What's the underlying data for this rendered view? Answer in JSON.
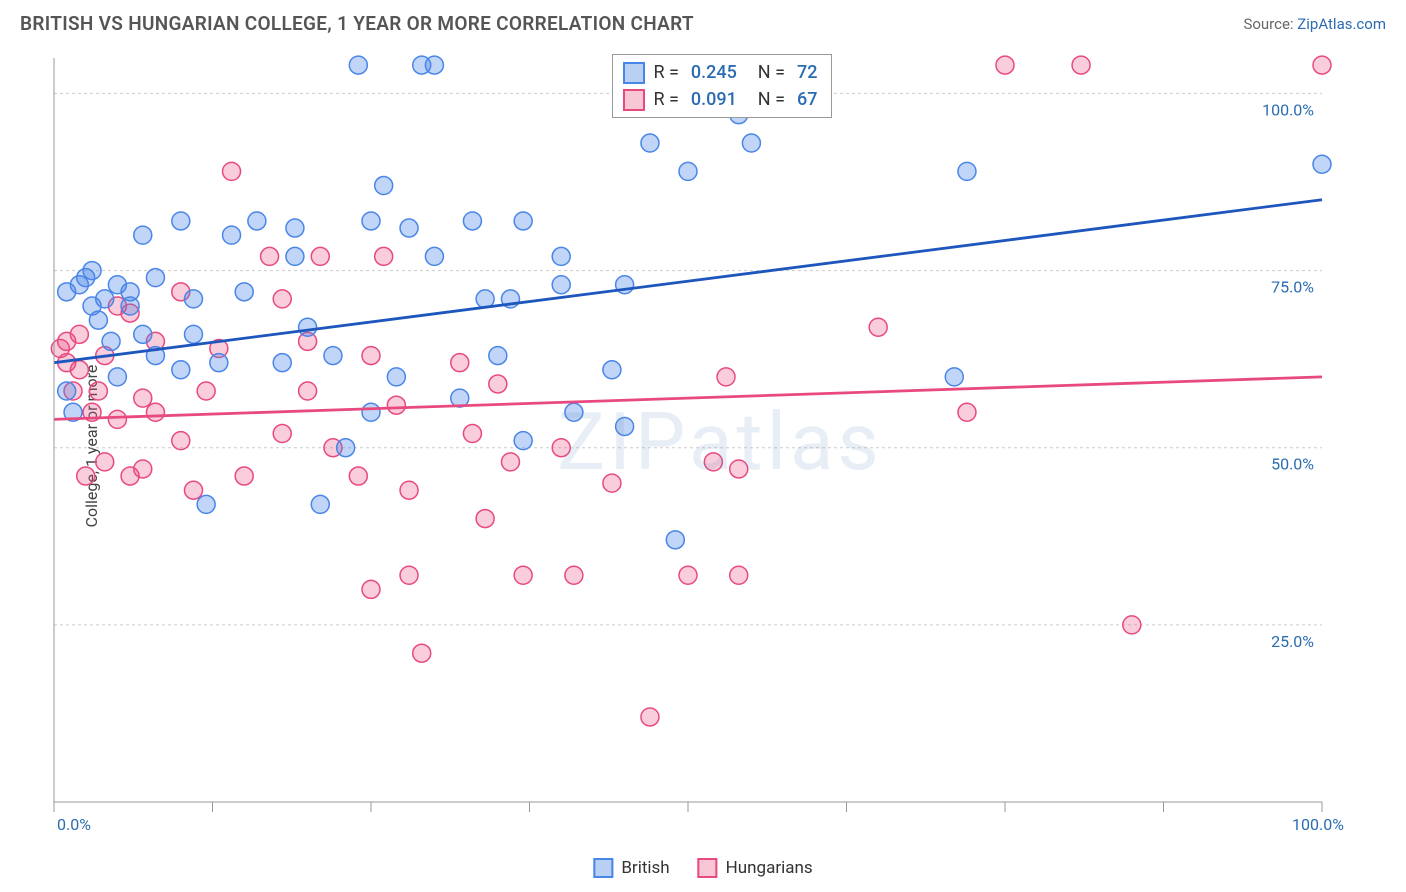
{
  "title": "BRITISH VS HUNGARIAN COLLEGE, 1 YEAR OR MORE CORRELATION CHART",
  "source_prefix": "Source: ",
  "source_name": "ZipAtlas.com",
  "watermark": "ZIPatlas",
  "ylabel": "College, 1 year or more",
  "chart": {
    "type": "scatter",
    "xlim": [
      0,
      100
    ],
    "ylim": [
      0,
      105
    ],
    "y_gridlines": [
      25,
      50,
      75,
      100
    ],
    "y_tick_labels": [
      "25.0%",
      "50.0%",
      "75.0%",
      "100.0%"
    ],
    "x_ticks": [
      0,
      12.5,
      25,
      37.5,
      50,
      62.5,
      75,
      87.5,
      100
    ],
    "x_axis_labels": {
      "left": "0.0%",
      "right": "100.0%"
    },
    "grid_color": "#cccccc",
    "axis_color": "#999999",
    "background": "#ffffff",
    "series": [
      {
        "name": "British",
        "fill": "rgba(74,134,232,0.35)",
        "stroke": "#4a86e8",
        "swatch_fill": "#b9d0f5",
        "swatch_stroke": "#4a86e8",
        "marker_r": 9,
        "R": "0.245",
        "N": "72",
        "trend": {
          "y0": 62,
          "y1": 85,
          "color": "#1d56bd",
          "width": 2.8
        },
        "points": [
          [
            1,
            58
          ],
          [
            1.5,
            55
          ],
          [
            1,
            72
          ],
          [
            2,
            73
          ],
          [
            2.5,
            74
          ],
          [
            3,
            70
          ],
          [
            3,
            75
          ],
          [
            3.5,
            68
          ],
          [
            4,
            71
          ],
          [
            4.5,
            65
          ],
          [
            5,
            73
          ],
          [
            5,
            60
          ],
          [
            6,
            70
          ],
          [
            6,
            72
          ],
          [
            7,
            66
          ],
          [
            7,
            80
          ],
          [
            8,
            63
          ],
          [
            8,
            74
          ],
          [
            10,
            82
          ],
          [
            10,
            61
          ],
          [
            11,
            71
          ],
          [
            11,
            66
          ],
          [
            12,
            42
          ],
          [
            13,
            62
          ],
          [
            14,
            80
          ],
          [
            15,
            72
          ],
          [
            16,
            82
          ],
          [
            18,
            62
          ],
          [
            19,
            77
          ],
          [
            19,
            81
          ],
          [
            20,
            67
          ],
          [
            21,
            42
          ],
          [
            22,
            63
          ],
          [
            23,
            50
          ],
          [
            24,
            104
          ],
          [
            25,
            82
          ],
          [
            25,
            55
          ],
          [
            26,
            87
          ],
          [
            27,
            60
          ],
          [
            28,
            81
          ],
          [
            29,
            104
          ],
          [
            30,
            104
          ],
          [
            30,
            77
          ],
          [
            32,
            57
          ],
          [
            33,
            82
          ],
          [
            34,
            71
          ],
          [
            35,
            63
          ],
          [
            36,
            71
          ],
          [
            37,
            51
          ],
          [
            37,
            82
          ],
          [
            40,
            77
          ],
          [
            40,
            73
          ],
          [
            41,
            55
          ],
          [
            44,
            61
          ],
          [
            45,
            73
          ],
          [
            45,
            53
          ],
          [
            47,
            93
          ],
          [
            49,
            37
          ],
          [
            50,
            89
          ],
          [
            54,
            97
          ],
          [
            55,
            93
          ],
          [
            71,
            60
          ],
          [
            72,
            89
          ],
          [
            100,
            90
          ]
        ]
      },
      {
        "name": "Hungarians",
        "fill": "rgba(232,74,127,0.28)",
        "stroke": "#e84a7f",
        "swatch_fill": "#f7c7d6",
        "swatch_stroke": "#e84a7f",
        "marker_r": 9,
        "R": "0.091",
        "N": "67",
        "trend": {
          "y0": 54,
          "y1": 60,
          "color": "#e84a7f",
          "width": 2.8
        },
        "points": [
          [
            0.5,
            64
          ],
          [
            1,
            65
          ],
          [
            1,
            62
          ],
          [
            1.5,
            58
          ],
          [
            2,
            61
          ],
          [
            2,
            66
          ],
          [
            2.5,
            46
          ],
          [
            3,
            55
          ],
          [
            3.5,
            58
          ],
          [
            4,
            48
          ],
          [
            4,
            63
          ],
          [
            5,
            70
          ],
          [
            5,
            54
          ],
          [
            6,
            69
          ],
          [
            6,
            46
          ],
          [
            7,
            57
          ],
          [
            7,
            47
          ],
          [
            8,
            65
          ],
          [
            8,
            55
          ],
          [
            10,
            51
          ],
          [
            10,
            72
          ],
          [
            11,
            44
          ],
          [
            12,
            58
          ],
          [
            13,
            64
          ],
          [
            14,
            89
          ],
          [
            15,
            46
          ],
          [
            17,
            77
          ],
          [
            18,
            71
          ],
          [
            18,
            52
          ],
          [
            20,
            65
          ],
          [
            20,
            58
          ],
          [
            21,
            77
          ],
          [
            22,
            50
          ],
          [
            24,
            46
          ],
          [
            25,
            30
          ],
          [
            25,
            63
          ],
          [
            26,
            77
          ],
          [
            27,
            56
          ],
          [
            28,
            32
          ],
          [
            28,
            44
          ],
          [
            29,
            21
          ],
          [
            32,
            62
          ],
          [
            33,
            52
          ],
          [
            34,
            40
          ],
          [
            35,
            59
          ],
          [
            36,
            48
          ],
          [
            37,
            32
          ],
          [
            40,
            50
          ],
          [
            41,
            32
          ],
          [
            44,
            45
          ],
          [
            47,
            12
          ],
          [
            50,
            32
          ],
          [
            52,
            48
          ],
          [
            53,
            60
          ],
          [
            54,
            32
          ],
          [
            54,
            47
          ],
          [
            65,
            67
          ],
          [
            72,
            55
          ],
          [
            75,
            104
          ],
          [
            81,
            104
          ],
          [
            85,
            25
          ],
          [
            100,
            104
          ]
        ]
      }
    ]
  },
  "legend_bottom": [
    {
      "label": "British",
      "fill": "#b9d0f5",
      "stroke": "#4a86e8"
    },
    {
      "label": "Hungarians",
      "fill": "#f7c7d6",
      "stroke": "#e84a7f"
    }
  ]
}
